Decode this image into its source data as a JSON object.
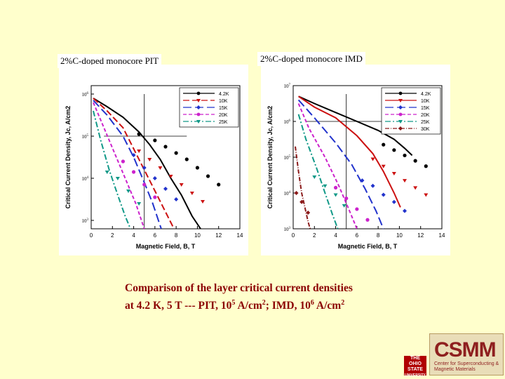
{
  "panels": [
    {
      "title": "2%C-doped monocore PIT"
    },
    {
      "title": "2%C-doped monocore IMD"
    }
  ],
  "caption": {
    "line1": "Comparison of the layer critical current densities",
    "line2_prefix": "at 4.2 K, 5 T ---  PIT, 10",
    "pit_exp": "5",
    "mid1": " A/cm",
    "sq": "2",
    "mid2": ";  IMD, 10",
    "imd_exp": "6",
    "end": " A/cm"
  },
  "logo": {
    "text": "CSMM",
    "subtitle_1": "Center for Superconducting &",
    "subtitle_2": "Magnetic Materials"
  },
  "osu": {
    "line1": "THE",
    "line2": "OHIO",
    "line3": "STATE",
    "line4": "UNIVERSITY"
  },
  "chart_data": [
    {
      "type": "line",
      "title": "2%C-doped monocore PIT",
      "xlabel": "Magnetic Field, B, T",
      "ylabel": "Critical Current Density, Jc, A/cm2",
      "xlim": [
        0,
        14
      ],
      "ylim_log10": [
        2.8,
        6.2
      ],
      "x_ticks": [
        0,
        2,
        4,
        6,
        8,
        10,
        12,
        14
      ],
      "y_tick_labels": [
        "10^6",
        "10^5",
        "10^4",
        "10^3"
      ],
      "y_tick_values": [
        6,
        5,
        4,
        3
      ],
      "grid": false,
      "legend_position": "top-right",
      "series": [
        {
          "name": "4.2K",
          "color": "#000000",
          "dash": "",
          "marker": "circle",
          "x": [
            0.2,
            1.5,
            3,
            4.5,
            5.5,
            6.5,
            7.5,
            8.5,
            9.5,
            10.3
          ],
          "y": [
            5.9,
            5.7,
            5.45,
            5.1,
            4.8,
            4.45,
            4.0,
            3.6,
            3.1,
            2.8
          ],
          "mx": [
            4.5,
            6,
            7,
            8,
            9,
            10,
            11,
            12
          ],
          "my": [
            5.05,
            4.9,
            4.75,
            4.6,
            4.45,
            4.25,
            4.05,
            3.85
          ]
        },
        {
          "name": "10K",
          "color": "#cc1111",
          "dash": "9,4",
          "marker": "triangle-down",
          "x": [
            0.2,
            1.5,
            3,
            4,
            5,
            6,
            7,
            7.8
          ],
          "y": [
            5.9,
            5.6,
            5.2,
            4.7,
            4.2,
            3.7,
            3.2,
            2.8
          ],
          "mx": [
            4.5,
            5.5,
            6.5,
            7.5,
            8.5,
            9.5,
            10.5
          ],
          "my": [
            4.65,
            4.45,
            4.25,
            4.05,
            3.85,
            3.65,
            3.45
          ]
        },
        {
          "name": "15K",
          "color": "#2233cc",
          "dash": "12,5",
          "marker": "diamond",
          "x": [
            0.2,
            1.5,
            3,
            4,
            5,
            5.8,
            6.6
          ],
          "y": [
            5.85,
            5.5,
            5.0,
            4.5,
            3.9,
            3.4,
            2.8
          ],
          "mx": [
            4,
            5,
            6,
            7,
            8
          ],
          "my": [
            4.55,
            4.25,
            4.0,
            3.75,
            3.5
          ]
        },
        {
          "name": "20K",
          "color": "#cc22cc",
          "dash": "5,3",
          "marker": "circle",
          "x": [
            0.2,
            1.2,
            2.2,
            3.2,
            4.2,
            5
          ],
          "y": [
            5.8,
            5.2,
            4.6,
            4.0,
            3.4,
            2.8
          ],
          "mx": [
            3,
            4,
            5,
            6
          ],
          "my": [
            4.4,
            4.15,
            3.85,
            3.55
          ]
        },
        {
          "name": "25K",
          "color": "#119988",
          "dash": "8,3,2,3",
          "marker": "triangle-down",
          "x": [
            0.2,
            0.9,
            1.7,
            2.5,
            3.2,
            3.7
          ],
          "y": [
            5.6,
            4.9,
            4.2,
            3.6,
            3.1,
            2.8
          ],
          "mx": [
            1.5,
            2.5,
            3.5,
            4.5
          ],
          "my": [
            4.15,
            4.0,
            3.7,
            3.4
          ]
        }
      ]
    },
    {
      "type": "line",
      "title": "2%C-doped monocore IMD",
      "xlabel": "Magnetic Field, B, T",
      "ylabel": "Critical Current Density, Jc, A/cm2",
      "xlim": [
        0,
        14
      ],
      "ylim_log10": [
        3,
        7
      ],
      "x_ticks": [
        0,
        2,
        4,
        6,
        8,
        10,
        12,
        14
      ],
      "y_tick_labels": [
        "10^7",
        "10^6",
        "10^5",
        "10^4",
        "10^3"
      ],
      "y_tick_values": [
        7,
        6,
        5,
        4,
        3
      ],
      "grid": false,
      "legend_position": "top-right",
      "series": [
        {
          "name": "4.2K",
          "color": "#000000",
          "dash": "",
          "marker": "circle",
          "x": [
            0.5,
            2,
            4,
            6,
            8,
            9.5,
            10.5,
            11.2
          ],
          "y": [
            6.7,
            6.5,
            6.25,
            6.0,
            5.75,
            5.5,
            5.25,
            5.05
          ],
          "mx": [
            8.5,
            9.5,
            10.5,
            11.5,
            12.5
          ],
          "my": [
            5.35,
            5.2,
            5.05,
            4.9,
            4.75
          ]
        },
        {
          "name": "10K",
          "color": "#cc1111",
          "dash": "",
          "marker": "triangle-down",
          "x": [
            0.5,
            2,
            4,
            6,
            7.5,
            8.5,
            9.5,
            10.1
          ],
          "y": [
            6.7,
            6.4,
            6.1,
            5.6,
            5.1,
            4.6,
            4.0,
            3.6
          ],
          "mx": [
            7.5,
            8.5,
            9.5,
            10.5,
            11.5,
            12.5
          ],
          "my": [
            4.95,
            4.75,
            4.55,
            4.35,
            4.15,
            3.95
          ]
        },
        {
          "name": "15K",
          "color": "#2233cc",
          "dash": "12,5",
          "marker": "diamond",
          "x": [
            0.5,
            2,
            4,
            5.5,
            6.8,
            7.8,
            8.5
          ],
          "y": [
            6.6,
            6.1,
            5.4,
            4.8,
            4.1,
            3.5,
            3.0
          ],
          "mx": [
            6.5,
            7.5,
            8.5,
            9.5,
            10.5
          ],
          "my": [
            4.35,
            4.2,
            3.95,
            3.75,
            3.5
          ]
        },
        {
          "name": "20K",
          "color": "#cc22cc",
          "dash": "5,3",
          "marker": "circle",
          "x": [
            0.5,
            1.5,
            3,
            4.3,
            5.3,
            6
          ],
          "y": [
            6.5,
            5.8,
            5.0,
            4.2,
            3.5,
            3.0
          ],
          "mx": [
            4,
            5,
            6,
            7
          ],
          "my": [
            4.15,
            3.85,
            3.55,
            3.25
          ]
        },
        {
          "name": "25K",
          "color": "#119988",
          "dash": "8,3,2,3",
          "marker": "triangle-down",
          "x": [
            0.5,
            1.2,
            2.2,
            3,
            3.7,
            4.2
          ],
          "y": [
            6.2,
            5.5,
            4.7,
            4.0,
            3.4,
            3.0
          ],
          "mx": [
            2,
            3,
            4,
            4.8
          ],
          "my": [
            4.45,
            4.2,
            3.95,
            3.65
          ]
        },
        {
          "name": "30K",
          "color": "#8b1a1a",
          "dash": "6,2,1,2",
          "marker": "diamond",
          "x": [
            0.2,
            0.5,
            0.8,
            1.1,
            1.4,
            1.6
          ],
          "y": [
            5.3,
            4.6,
            4.0,
            3.6,
            3.2,
            3.0
          ],
          "mx": [
            0.3,
            0.8,
            1.4
          ],
          "my": [
            4.0,
            3.75,
            3.45
          ]
        }
      ]
    }
  ]
}
